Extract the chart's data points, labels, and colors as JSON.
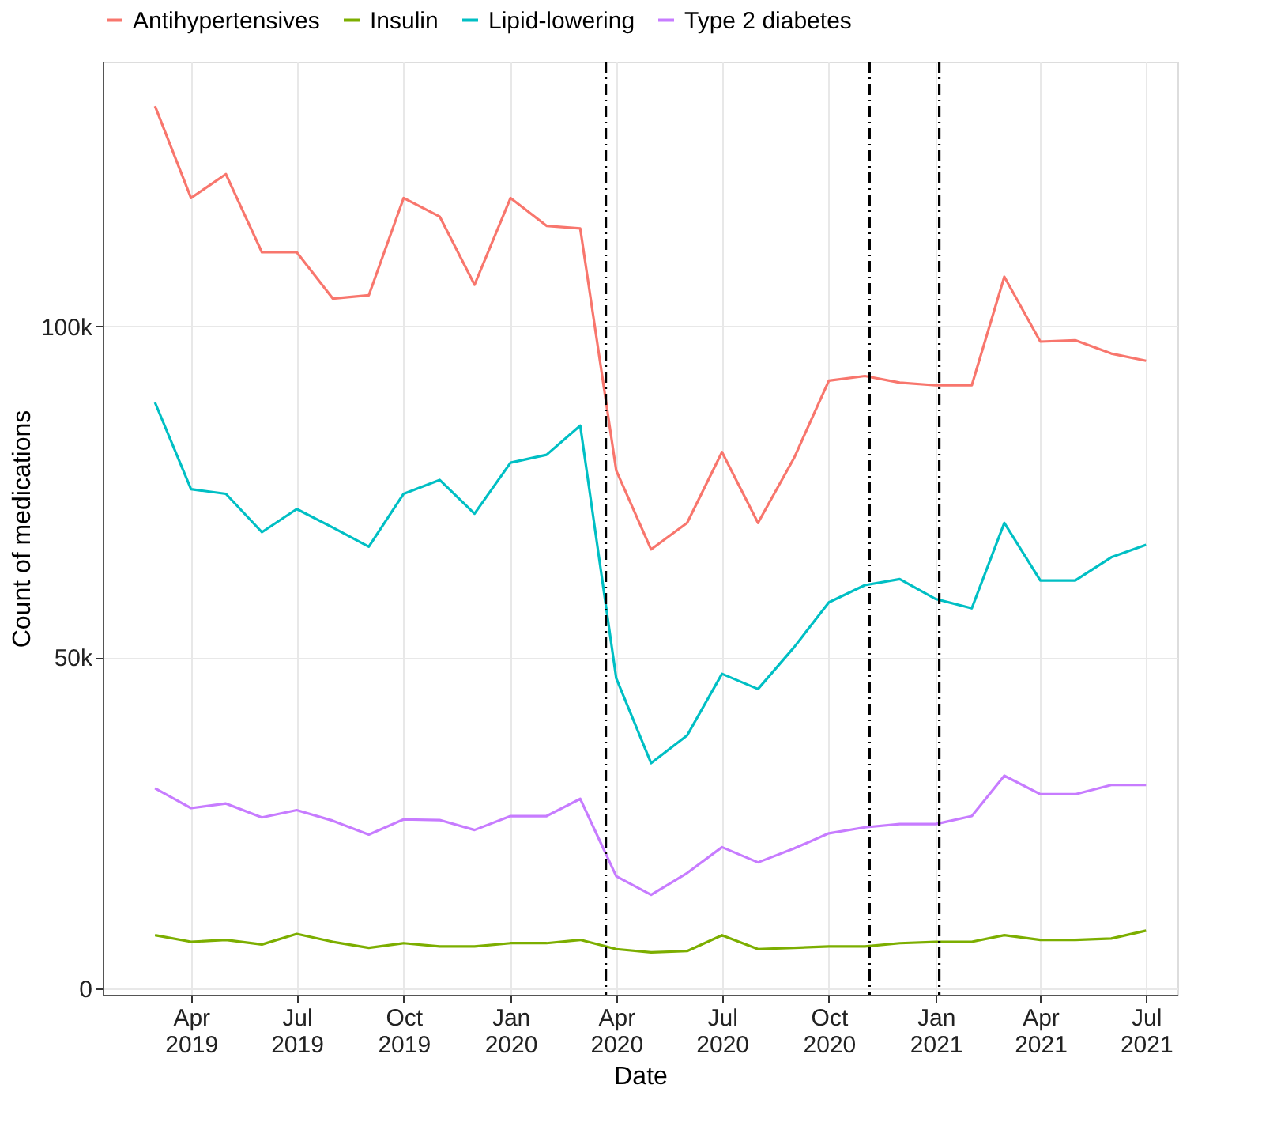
{
  "chart_data": {
    "type": "line",
    "xlabel": "Date",
    "ylabel": "Count of medications",
    "x": [
      "2019-03-01",
      "2019-04-01",
      "2019-05-01",
      "2019-06-01",
      "2019-07-01",
      "2019-08-01",
      "2019-09-01",
      "2019-10-01",
      "2019-11-01",
      "2019-12-01",
      "2020-01-01",
      "2020-02-01",
      "2020-03-01",
      "2020-04-01",
      "2020-05-01",
      "2020-06-01",
      "2020-07-01",
      "2020-08-01",
      "2020-09-01",
      "2020-10-01",
      "2020-11-01",
      "2020-12-01",
      "2021-01-01",
      "2021-02-01",
      "2021-03-01",
      "2021-04-01",
      "2021-05-01",
      "2021-06-01",
      "2021-07-01"
    ],
    "series": [
      {
        "name": "Antihypertensives",
        "color": "#f8766d",
        "values": [
          133300,
          119400,
          123000,
          111200,
          111200,
          104200,
          104700,
          119400,
          116600,
          106300,
          119400,
          115200,
          114800,
          78200,
          66300,
          70300,
          81000,
          70300,
          80100,
          91800,
          92500,
          91500,
          91100,
          91100,
          107500,
          97700,
          97900,
          95900,
          94800
        ]
      },
      {
        "name": "Insulin",
        "color": "#7cae00",
        "values": [
          8000,
          7000,
          7300,
          6600,
          8200,
          7000,
          6100,
          6800,
          6300,
          6300,
          6800,
          6800,
          7300,
          5900,
          5400,
          5600,
          8000,
          5900,
          6100,
          6300,
          6300,
          6800,
          7000,
          7000,
          8000,
          7300,
          7300,
          7500,
          8700
        ]
      },
      {
        "name": "Lipid-lowering",
        "color": "#00bfc4",
        "values": [
          88500,
          75400,
          74700,
          68900,
          72400,
          69600,
          66700,
          74700,
          76800,
          71700,
          79400,
          80600,
          85000,
          46800,
          34000,
          38200,
          47500,
          45200,
          51500,
          58300,
          60900,
          61800,
          58800,
          57400,
          70300,
          61600,
          61600,
          65100,
          67000
        ]
      },
      {
        "name": "Type 2 diabetes",
        "color": "#c77cff",
        "values": [
          30200,
          27200,
          27900,
          25800,
          26900,
          25300,
          23200,
          25500,
          25400,
          23900,
          26000,
          26000,
          28600,
          16900,
          14100,
          17400,
          21300,
          19000,
          21100,
          23400,
          24300,
          24800,
          24800,
          26000,
          32100,
          29300,
          29300,
          30700,
          30700
        ]
      }
    ],
    "xlim": [
      "2019-01-15",
      "2021-07-28"
    ],
    "xticks": [
      {
        "value": "2019-04-01",
        "label": "Apr 2019"
      },
      {
        "value": "2019-07-01",
        "label": "Jul 2019"
      },
      {
        "value": "2019-10-01",
        "label": "Oct 2019"
      },
      {
        "value": "2020-01-01",
        "label": "Jan 2020"
      },
      {
        "value": "2020-04-01",
        "label": "Apr 2020"
      },
      {
        "value": "2020-07-01",
        "label": "Jul 2020"
      },
      {
        "value": "2020-10-01",
        "label": "Oct 2020"
      },
      {
        "value": "2021-01-01",
        "label": "Jan 2021"
      },
      {
        "value": "2021-04-01",
        "label": "Apr 2021"
      },
      {
        "value": "2021-07-01",
        "label": "Jul 2021"
      }
    ],
    "ylim": [
      -1000,
      140000
    ],
    "yticks": [
      {
        "value": 0,
        "label": "0"
      },
      {
        "value": 50000,
        "label": "50k"
      },
      {
        "value": 100000,
        "label": "100k"
      }
    ],
    "ref_lines": [
      {
        "axis": "x",
        "value": "2020-03-23",
        "color": "#000000",
        "line_style": "dashdot"
      },
      {
        "axis": "x",
        "value": "2020-11-05",
        "color": "#000000",
        "line_style": "dashdot"
      },
      {
        "axis": "x",
        "value": "2021-01-04",
        "color": "#000000",
        "line_style": "dashdot"
      }
    ],
    "grid": true,
    "legend": "top",
    "marker": "none",
    "line_style": "solid"
  }
}
